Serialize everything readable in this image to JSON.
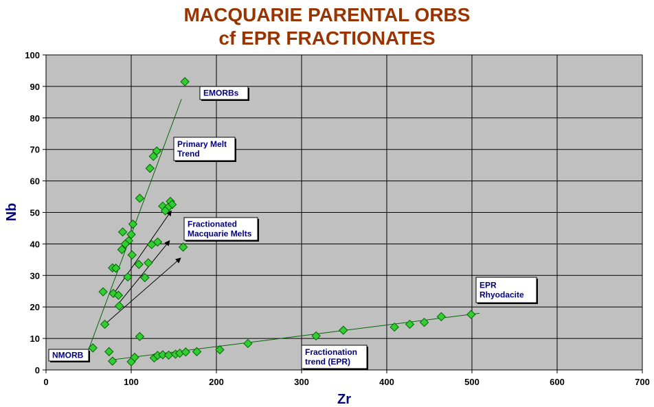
{
  "chart_data": {
    "type": "scatter",
    "title": "MACQUARIE  PARENTAL ORBS",
    "subtitle": "cf EPR FRACTIONATES",
    "xlabel": "Zr",
    "ylabel": "Nb",
    "xlim": [
      0,
      700
    ],
    "ylim": [
      0,
      100
    ],
    "x_ticks": [
      "0",
      "100",
      "200",
      "300",
      "400",
      "500",
      "600",
      "700"
    ],
    "y_ticks": [
      "0",
      "10",
      "20",
      "30",
      "40",
      "50",
      "60",
      "70",
      "80",
      "90",
      "100"
    ],
    "grid": true,
    "colors": {
      "plot_bg": "#c0c0c0",
      "marker": "#33cc33",
      "marker_edge": "#006600",
      "line": "#006600",
      "title": "#993300",
      "axis_label": "#000080",
      "label_text": "#000080"
    },
    "points": [
      [
        163,
        91.5
      ],
      [
        130,
        69.5
      ],
      [
        126,
        67.8
      ],
      [
        122,
        64
      ],
      [
        110,
        54.5
      ],
      [
        146,
        53.5
      ],
      [
        148,
        52.5
      ],
      [
        137,
        52
      ],
      [
        143,
        51.5
      ],
      [
        140,
        50.5
      ],
      [
        102,
        46.3
      ],
      [
        90,
        43.8
      ],
      [
        100,
        43
      ],
      [
        97,
        41
      ],
      [
        93,
        40
      ],
      [
        131,
        40.6
      ],
      [
        124,
        39.8
      ],
      [
        89,
        38.2
      ],
      [
        161,
        39
      ],
      [
        101,
        36.5
      ],
      [
        120,
        34
      ],
      [
        109,
        33.5
      ],
      [
        78,
        32.4
      ],
      [
        82,
        32.3
      ],
      [
        96,
        29.5
      ],
      [
        116,
        29.3
      ],
      [
        67,
        24.8
      ],
      [
        79,
        24.3
      ],
      [
        85,
        23.7
      ],
      [
        86,
        20.3
      ],
      [
        69,
        14.5
      ],
      [
        55,
        7
      ],
      [
        110,
        10.6
      ],
      [
        74,
        5.8
      ],
      [
        78,
        2.8
      ],
      [
        100,
        2.6
      ],
      [
        104,
        4
      ],
      [
        127,
        3.8
      ],
      [
        131,
        4.6
      ],
      [
        137,
        4.8
      ],
      [
        144,
        4.7
      ],
      [
        152,
        5
      ],
      [
        157,
        5.3
      ],
      [
        164,
        5.7
      ],
      [
        177,
        5.8
      ],
      [
        204,
        6.4
      ],
      [
        237,
        8.4
      ],
      [
        317,
        10.8
      ],
      [
        349,
        12.6
      ],
      [
        409,
        13.6
      ],
      [
        427,
        14.5
      ],
      [
        444,
        15.1
      ],
      [
        464,
        16.9
      ],
      [
        499,
        17.6
      ]
    ],
    "trend_lines": [
      {
        "from": [
          50,
          6.5
        ],
        "to": [
          159,
          86
        ]
      },
      {
        "from": [
          77,
          3.2
        ],
        "to": [
          509,
          18
        ]
      }
    ],
    "arrows": [
      {
        "from": [
          79,
          24
        ],
        "to": [
          147,
          50.5
        ]
      },
      {
        "from": [
          82,
          20
        ],
        "to": [
          145,
          41
        ]
      },
      {
        "from": [
          67,
          14
        ],
        "to": [
          158,
          35.5
        ]
      }
    ],
    "annotations": [
      {
        "lines": [
          "EMORBs"
        ]
      },
      {
        "lines": [
          "Primary Melt",
          "Trend"
        ]
      },
      {
        "lines": [
          "Fractionated",
          "Macquarie Melts"
        ]
      },
      {
        "lines": [
          "NMORB"
        ]
      },
      {
        "lines": [
          "EPR",
          "Rhyodacite"
        ]
      },
      {
        "lines": [
          "Fractionation",
          "trend (EPR)"
        ]
      }
    ]
  }
}
